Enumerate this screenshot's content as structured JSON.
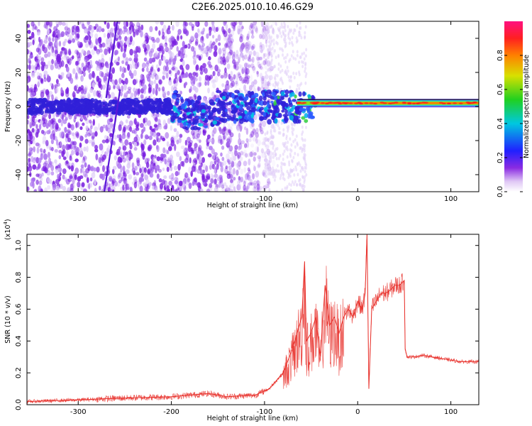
{
  "title": "C2E6.2025.010.10.46.G29",
  "chart_data": [
    {
      "type": "heatmap",
      "xlabel": "Height of straight line (km)",
      "ylabel": "Frequency (Hz)",
      "xlim": [
        -355,
        130
      ],
      "ylim": [
        -50,
        50
      ],
      "xticks": [
        -300,
        -200,
        -100,
        0,
        100
      ],
      "yticks": [
        -40,
        -20,
        0,
        20,
        40
      ],
      "colorbar": {
        "label": "Normalized spectral amplitude",
        "range": [
          0.0,
          1.0
        ],
        "ticks": [
          0.0,
          0.2,
          0.4,
          0.6,
          0.8
        ],
        "colormap": "rainbow (white-violet-blue-cyan-green-yellow-red-magenta)"
      },
      "features": {
        "noise_region_x": [
          -355,
          -100
        ],
        "carrier_frequency_hz": 2,
        "carrier_start_x": -65,
        "diagonal_lines": [
          {
            "x_start": -272,
            "y_start": -50,
            "x_end": -255,
            "y_end": 10
          },
          {
            "x_start": -270,
            "y_start": 5,
            "x_end": -258,
            "y_end": 50
          }
        ]
      }
    },
    {
      "type": "line",
      "xlabel": "Height of straight line (km)",
      "ylabel": "SNR (10 * v/v)",
      "y_multiplier_label": "(x10",
      "y_multiplier_exp": "4",
      "xlim": [
        -355,
        130
      ],
      "ylim": [
        0,
        1.07
      ],
      "xticks": [
        -300,
        -200,
        -100,
        0,
        100
      ],
      "yticks": [
        0.0,
        0.2,
        0.4,
        0.6,
        0.8,
        1.0
      ],
      "series": [
        {
          "color": "#e8302a",
          "x": [
            -355,
            -300,
            -260,
            -200,
            -180,
            -160,
            -140,
            -110,
            -95,
            -80,
            -70,
            -65,
            -60,
            -57,
            -55,
            -50,
            -45,
            -40,
            -35,
            -30,
            -25,
            -20,
            -15,
            -10,
            -5,
            0,
            5,
            8,
            10,
            12,
            15,
            20,
            25,
            30,
            35,
            40,
            45,
            50,
            51,
            53,
            60,
            70,
            80,
            90,
            100,
            110,
            120,
            130
          ],
          "values": [
            0.02,
            0.03,
            0.04,
            0.05,
            0.06,
            0.07,
            0.05,
            0.06,
            0.1,
            0.2,
            0.35,
            0.45,
            0.55,
            0.9,
            0.4,
            0.45,
            0.55,
            0.3,
            0.75,
            0.5,
            0.55,
            0.45,
            0.55,
            0.6,
            0.55,
            0.65,
            0.6,
            0.7,
            1.07,
            0.1,
            0.6,
            0.65,
            0.7,
            0.7,
            0.72,
            0.75,
            0.75,
            0.78,
            0.35,
            0.3,
            0.3,
            0.31,
            0.3,
            0.29,
            0.28,
            0.27,
            0.27,
            0.27
          ]
        }
      ]
    }
  ]
}
